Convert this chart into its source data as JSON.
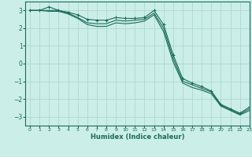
{
  "title": "",
  "xlabel": "Humidex (Indice chaleur)",
  "xlim": [
    -0.5,
    23
  ],
  "ylim": [
    -3.5,
    3.5
  ],
  "yticks": [
    -3,
    -2,
    -1,
    0,
    1,
    2,
    3
  ],
  "xticks": [
    0,
    1,
    2,
    3,
    4,
    5,
    6,
    7,
    8,
    9,
    10,
    11,
    12,
    13,
    14,
    15,
    16,
    17,
    18,
    19,
    20,
    21,
    22,
    23
  ],
  "bg_color": "#cceee8",
  "grid_color": "#aad8d0",
  "line_color": "#1a6b5a",
  "lines": [
    {
      "x": [
        0,
        1,
        2,
        3,
        4,
        5,
        6,
        7,
        8,
        9,
        10,
        11,
        12,
        13,
        14,
        15,
        16,
        17,
        18,
        19,
        20,
        21,
        22,
        23
      ],
      "y": [
        3.0,
        3.0,
        3.2,
        3.0,
        2.9,
        2.75,
        2.5,
        2.45,
        2.45,
        2.6,
        2.55,
        2.55,
        2.6,
        3.0,
        2.2,
        0.5,
        -0.85,
        -1.1,
        -1.3,
        -1.55,
        -2.3,
        -2.55,
        -2.8,
        -2.45
      ],
      "marker": true
    },
    {
      "x": [
        0,
        1,
        2,
        3,
        4,
        5,
        6,
        7,
        8,
        9,
        10,
        11,
        12,
        13,
        14,
        15,
        16,
        17,
        18,
        19,
        20,
        21,
        22,
        23
      ],
      "y": [
        3.0,
        3.0,
        3.0,
        3.0,
        2.85,
        2.6,
        2.3,
        2.25,
        2.25,
        2.45,
        2.4,
        2.45,
        2.5,
        2.85,
        2.0,
        0.3,
        -1.0,
        -1.2,
        -1.4,
        -1.6,
        -2.35,
        -2.6,
        -2.85,
        -2.55
      ],
      "marker": false
    },
    {
      "x": [
        0,
        1,
        2,
        3,
        4,
        5,
        6,
        7,
        8,
        9,
        10,
        11,
        12,
        13,
        14,
        15,
        16,
        17,
        18,
        19,
        20,
        21,
        22,
        23
      ],
      "y": [
        3.0,
        3.0,
        2.95,
        2.95,
        2.8,
        2.55,
        2.2,
        2.1,
        2.1,
        2.3,
        2.25,
        2.3,
        2.4,
        2.75,
        1.8,
        0.1,
        -1.1,
        -1.35,
        -1.5,
        -1.7,
        -2.4,
        -2.65,
        -2.9,
        -2.65
      ],
      "marker": false
    }
  ]
}
